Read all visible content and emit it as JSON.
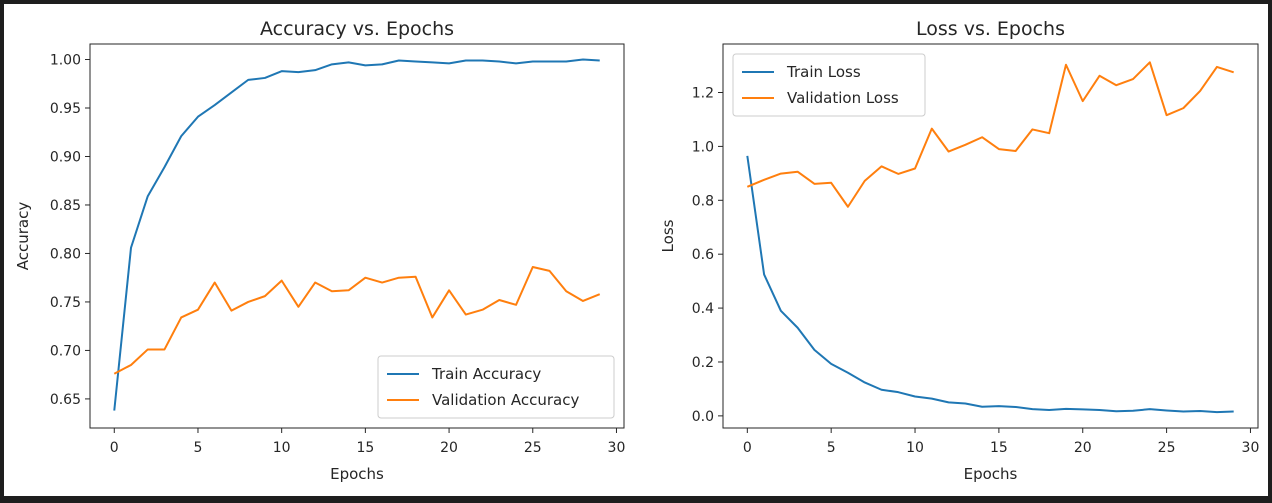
{
  "chart_data": [
    {
      "type": "line",
      "title": "Accuracy vs. Epochs",
      "xlabel": "Epochs",
      "ylabel": "Accuracy",
      "xlim": [
        -1.45,
        30.45
      ],
      "ylim": [
        0.62,
        1.016
      ],
      "xticks": [
        0,
        5,
        10,
        15,
        20,
        25,
        30
      ],
      "yticks": [
        0.65,
        0.7,
        0.75,
        0.8,
        0.85,
        0.9,
        0.95,
        1.0
      ],
      "ytick_decimals": 2,
      "legend": "lower-right",
      "grid": false,
      "x": [
        0,
        1,
        2,
        3,
        4,
        5,
        6,
        7,
        8,
        9,
        10,
        11,
        12,
        13,
        14,
        15,
        16,
        17,
        18,
        19,
        20,
        21,
        22,
        23,
        24,
        25,
        26,
        27,
        28,
        29
      ],
      "series": [
        {
          "name": "Train Accuracy",
          "color": "#1f77b4",
          "values": [
            0.638,
            0.806,
            0.859,
            0.889,
            0.921,
            0.941,
            0.953,
            0.966,
            0.979,
            0.981,
            0.988,
            0.987,
            0.989,
            0.995,
            0.997,
            0.994,
            0.995,
            0.999,
            0.998,
            0.997,
            0.996,
            0.999,
            0.999,
            0.998,
            0.996,
            0.998,
            0.998,
            0.998,
            1.0,
            0.999
          ]
        },
        {
          "name": "Validation Accuracy",
          "color": "#ff7f0e",
          "values": [
            0.676,
            0.685,
            0.701,
            0.701,
            0.734,
            0.742,
            0.77,
            0.741,
            0.75,
            0.756,
            0.772,
            0.745,
            0.77,
            0.761,
            0.762,
            0.775,
            0.77,
            0.775,
            0.776,
            0.734,
            0.762,
            0.737,
            0.742,
            0.752,
            0.747,
            0.786,
            0.782,
            0.761,
            0.751,
            0.758
          ]
        }
      ]
    },
    {
      "type": "line",
      "title": "Loss vs. Epochs",
      "xlabel": "Epochs",
      "ylabel": "Loss",
      "xlim": [
        -1.45,
        30.45
      ],
      "ylim": [
        -0.045,
        1.38
      ],
      "xticks": [
        0,
        5,
        10,
        15,
        20,
        25,
        30
      ],
      "yticks": [
        0.0,
        0.2,
        0.4,
        0.6,
        0.8,
        1.0,
        1.2
      ],
      "ytick_decimals": 1,
      "legend": "upper-left",
      "grid": false,
      "x": [
        0,
        1,
        2,
        3,
        4,
        5,
        6,
        7,
        8,
        9,
        10,
        11,
        12,
        13,
        14,
        15,
        16,
        17,
        18,
        19,
        20,
        21,
        22,
        23,
        24,
        25,
        26,
        27,
        28,
        29
      ],
      "series": [
        {
          "name": "Train Loss",
          "color": "#1f77b4",
          "values": [
            0.965,
            0.525,
            0.39,
            0.327,
            0.245,
            0.193,
            0.16,
            0.124,
            0.097,
            0.088,
            0.072,
            0.064,
            0.05,
            0.046,
            0.034,
            0.036,
            0.033,
            0.025,
            0.022,
            0.026,
            0.024,
            0.022,
            0.017,
            0.019,
            0.025,
            0.02,
            0.016,
            0.018,
            0.014,
            0.016
          ]
        },
        {
          "name": "Validation Loss",
          "color": "#ff7f0e",
          "values": [
            0.85,
            0.876,
            0.899,
            0.906,
            0.861,
            0.865,
            0.776,
            0.872,
            0.926,
            0.898,
            0.918,
            1.066,
            0.981,
            1.006,
            1.034,
            0.99,
            0.983,
            1.063,
            1.049,
            1.303,
            1.168,
            1.262,
            1.227,
            1.25,
            1.312,
            1.116,
            1.142,
            1.206,
            1.295,
            1.275
          ]
        }
      ]
    }
  ]
}
